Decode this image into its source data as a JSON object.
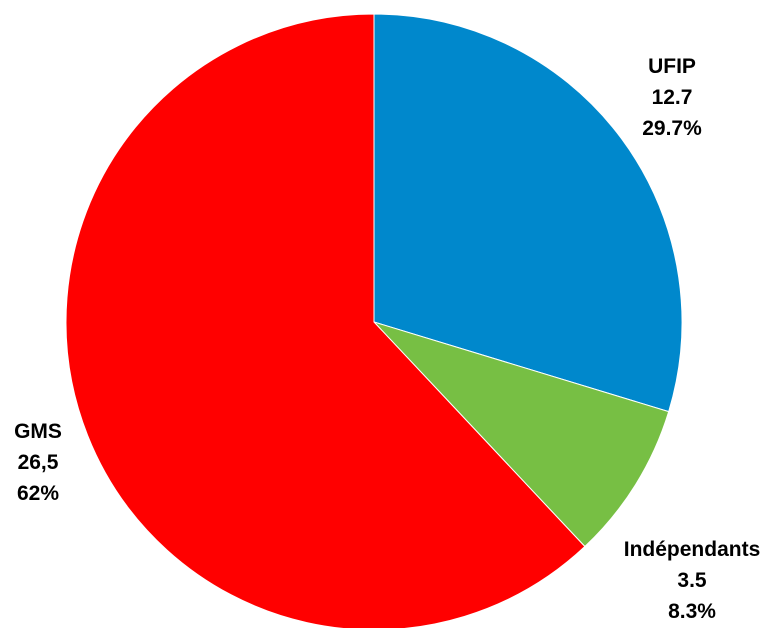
{
  "chart_data": {
    "type": "pie",
    "title": "",
    "slices": [
      {
        "name": "UFIP",
        "value_label": "12.7",
        "percent_label": "29.7%",
        "value": 12.7,
        "percent": 29.7,
        "color": "#0088CC"
      },
      {
        "name": "Indépendants",
        "value_label": "3.5",
        "percent_label": "8.3%",
        "value": 3.5,
        "percent": 8.3,
        "color": "#77BF44"
      },
      {
        "name": "GMS",
        "value_label": "26,5",
        "percent_label": "62%",
        "value": 26.5,
        "percent": 62,
        "color": "#FF0000"
      }
    ],
    "start_angle": "12 o'clock",
    "direction": "clockwise",
    "legend": "none"
  }
}
